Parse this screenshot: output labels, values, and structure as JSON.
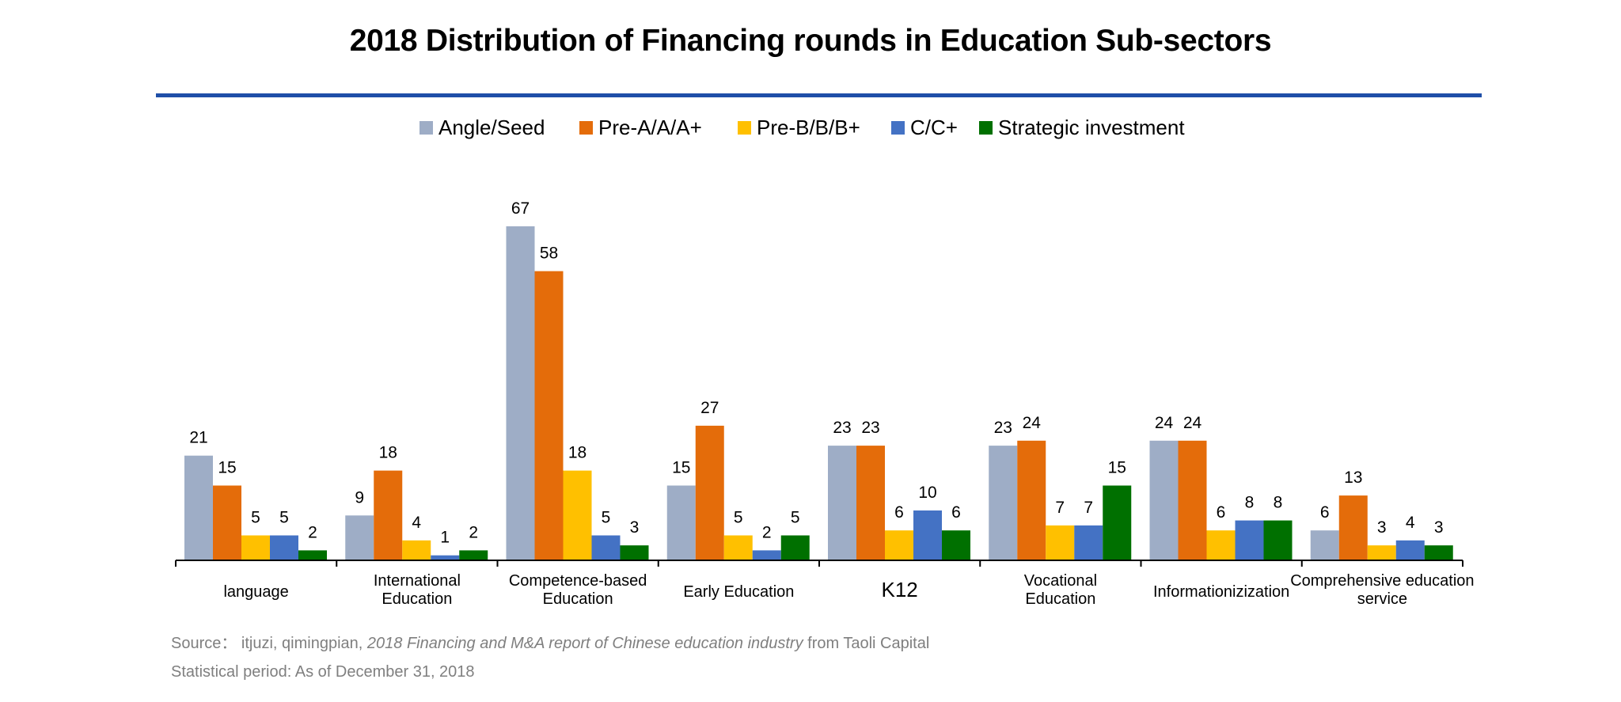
{
  "chart_data": {
    "type": "bar",
    "title": "2018 Distribution of Financing rounds in Education Sub-sectors",
    "xlabel": "",
    "ylabel": "",
    "ylim": [
      0,
      72
    ],
    "grid": false,
    "legend_position": "top-center",
    "categories": [
      [
        "language"
      ],
      [
        "International",
        "Education"
      ],
      [
        "Competence-based",
        "Education"
      ],
      [
        "Early Education"
      ],
      [
        "K12"
      ],
      [
        "Vocational",
        "Education"
      ],
      [
        "Informationizization"
      ],
      [
        "Comprehensive education",
        "service"
      ]
    ],
    "series": [
      {
        "name": "Angle/Seed",
        "color": "#9eadc6",
        "values": [
          21,
          9,
          67,
          15,
          23,
          23,
          24,
          6
        ]
      },
      {
        "name": "Pre-A/A/A+",
        "color": "#e46c0a",
        "values": [
          15,
          18,
          58,
          27,
          23,
          24,
          24,
          13
        ]
      },
      {
        "name": "Pre-B/B/B+",
        "color": "#ffc000",
        "values": [
          5,
          4,
          18,
          5,
          6,
          7,
          6,
          3
        ]
      },
      {
        "name": "C/C+",
        "color": "#4472c4",
        "values": [
          5,
          1,
          5,
          2,
          10,
          7,
          8,
          4
        ]
      },
      {
        "name": "Strategic investment",
        "color": "#007000",
        "values": [
          2,
          2,
          3,
          5,
          6,
          15,
          8,
          3
        ]
      }
    ]
  },
  "footer": {
    "source_prefix": "Source：  itjuzi, qimingpian, ",
    "source_italic": "2018 Financing and M&A report of Chinese education industry",
    "source_suffix": " from Taoli Capital",
    "period": "Statistical period: As of December 31, 2018"
  },
  "colors": {
    "title_rule": "#1f4fa8",
    "footer_text": "#7f7f7f"
  }
}
